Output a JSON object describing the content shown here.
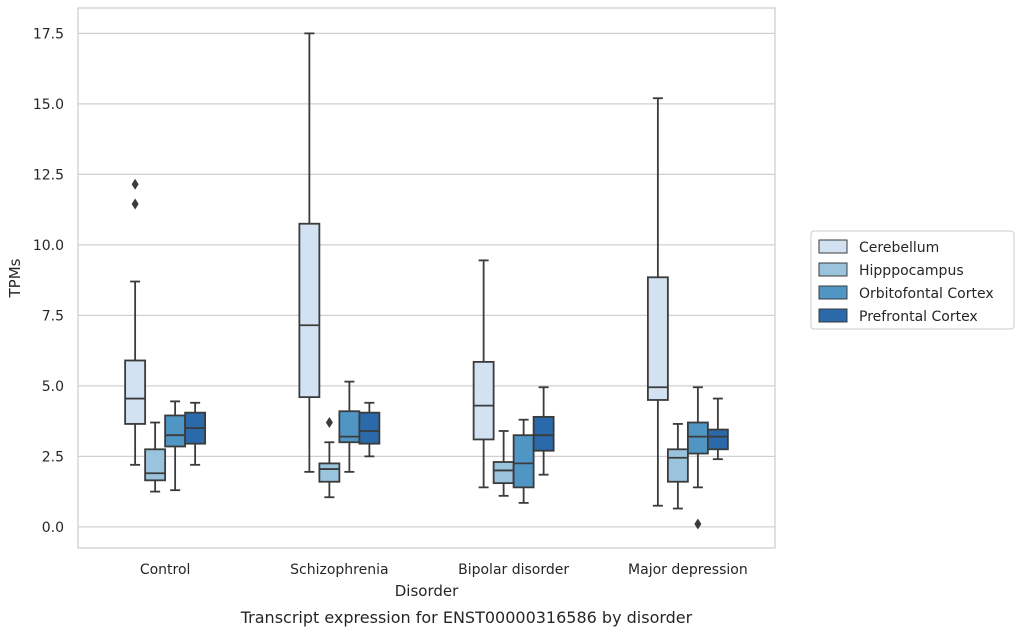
{
  "chart_data": {
    "type": "box",
    "title": "",
    "caption": "Transcript expression for ENST00000316586 by disorder",
    "xlabel": "Disorder",
    "ylabel": "TPMs",
    "ylim": [
      -0.75,
      18.4
    ],
    "yticks": [
      "0.0",
      "2.5",
      "5.0",
      "7.5",
      "10.0",
      "12.5",
      "15.0",
      "17.5"
    ],
    "grid": "horizontal",
    "legend_position": "right",
    "categories": [
      "Control",
      "Schizophrenia",
      "Bipolar disorder",
      "Major depression"
    ],
    "series": [
      {
        "name": "Cerebellum",
        "color": "#d3e2f2",
        "boxes": [
          {
            "whisker_low": 2.2,
            "q1": 3.65,
            "median": 4.55,
            "q3": 5.9,
            "whisker_high": 8.7,
            "outliers": [
              11.45,
              12.15
            ]
          },
          {
            "whisker_low": 1.95,
            "q1": 4.6,
            "median": 7.15,
            "q3": 10.75,
            "whisker_high": 17.5,
            "outliers": []
          },
          {
            "whisker_low": 1.4,
            "q1": 3.1,
            "median": 4.3,
            "q3": 5.85,
            "whisker_high": 9.45,
            "outliers": []
          },
          {
            "whisker_low": 0.75,
            "q1": 4.5,
            "median": 4.95,
            "q3": 8.85,
            "whisker_high": 15.2,
            "outliers": []
          }
        ]
      },
      {
        "name": "Hipppocampus",
        "color": "#9ac3de",
        "boxes": [
          {
            "whisker_low": 1.25,
            "q1": 1.65,
            "median": 1.9,
            "q3": 2.75,
            "whisker_high": 3.7,
            "outliers": []
          },
          {
            "whisker_low": 1.05,
            "q1": 1.6,
            "median": 2.05,
            "q3": 2.25,
            "whisker_high": 3.0,
            "outliers": [
              3.7
            ]
          },
          {
            "whisker_low": 1.1,
            "q1": 1.55,
            "median": 2.0,
            "q3": 2.3,
            "whisker_high": 3.4,
            "outliers": []
          },
          {
            "whisker_low": 0.65,
            "q1": 1.6,
            "median": 2.45,
            "q3": 2.75,
            "whisker_high": 3.65,
            "outliers": []
          }
        ]
      },
      {
        "name": "Orbitofontal Cortex",
        "color": "#5096c5",
        "boxes": [
          {
            "whisker_low": 1.3,
            "q1": 2.85,
            "median": 3.25,
            "q3": 3.95,
            "whisker_high": 4.45,
            "outliers": []
          },
          {
            "whisker_low": 1.95,
            "q1": 3.0,
            "median": 3.2,
            "q3": 4.1,
            "whisker_high": 5.15,
            "outliers": []
          },
          {
            "whisker_low": 0.85,
            "q1": 1.4,
            "median": 2.25,
            "q3": 3.25,
            "whisker_high": 3.8,
            "outliers": []
          },
          {
            "whisker_low": 1.4,
            "q1": 2.6,
            "median": 3.2,
            "q3": 3.7,
            "whisker_high": 4.95,
            "outliers": [
              0.1
            ]
          }
        ]
      },
      {
        "name": "Prefrontal Cortex",
        "color": "#2a69aa",
        "boxes": [
          {
            "whisker_low": 2.2,
            "q1": 2.95,
            "median": 3.5,
            "q3": 4.05,
            "whisker_high": 4.4,
            "outliers": []
          },
          {
            "whisker_low": 2.5,
            "q1": 2.95,
            "median": 3.4,
            "q3": 4.05,
            "whisker_high": 4.4,
            "outliers": []
          },
          {
            "whisker_low": 1.85,
            "q1": 2.7,
            "median": 3.25,
            "q3": 3.9,
            "whisker_high": 4.95,
            "outliers": []
          },
          {
            "whisker_low": 2.4,
            "q1": 2.75,
            "median": 3.2,
            "q3": 3.45,
            "whisker_high": 4.55,
            "outliers": []
          }
        ]
      }
    ]
  }
}
